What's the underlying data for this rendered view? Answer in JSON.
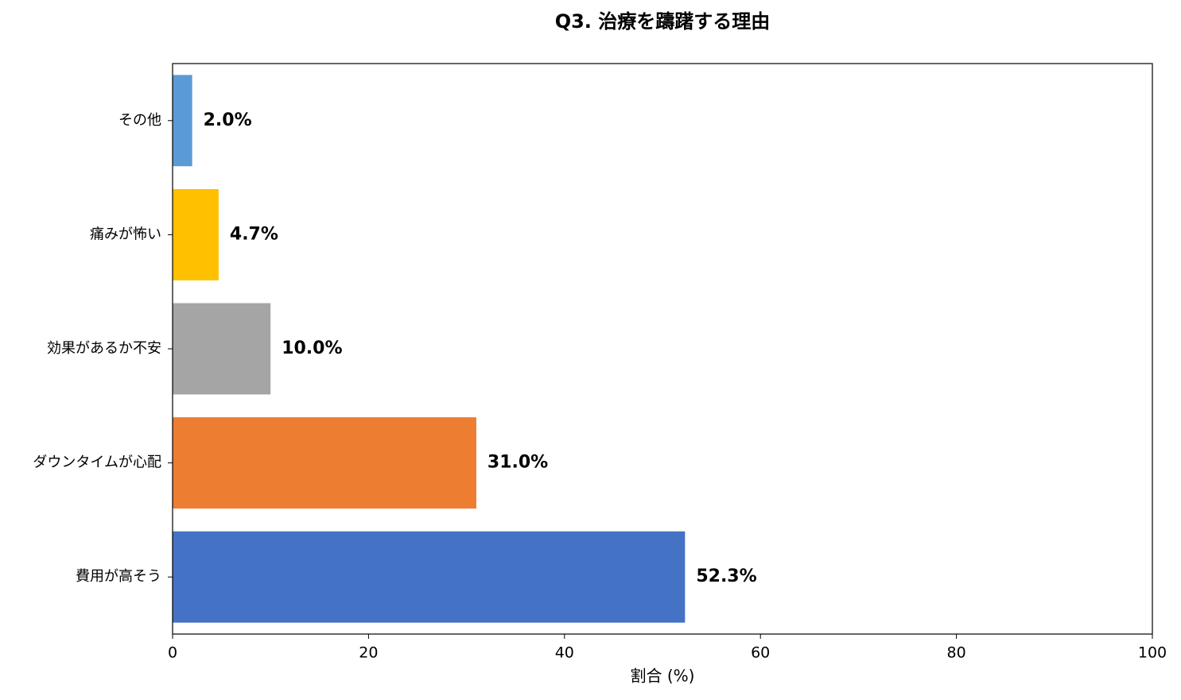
{
  "chart_data": {
    "type": "barh",
    "title": "Q3. 治療を躊躇する理由",
    "xlabel": "割合 (%)",
    "categories": [
      "その他",
      "痛みが怖い",
      "効果があるか不安",
      "ダウンタイムが心配",
      "費用が高そう"
    ],
    "values": [
      2.0,
      4.7,
      10.0,
      31.0,
      52.3
    ],
    "value_labels": [
      "2.0%",
      "4.7%",
      "10.0%",
      "31.0%",
      "52.3%"
    ],
    "colors": [
      "#5b9bd5",
      "#ffc000",
      "#a5a5a5",
      "#ed7d31",
      "#4472c4"
    ],
    "xlim": [
      0,
      100
    ],
    "xticks": [
      0,
      20,
      40,
      60,
      80,
      100
    ],
    "grid": false
  }
}
